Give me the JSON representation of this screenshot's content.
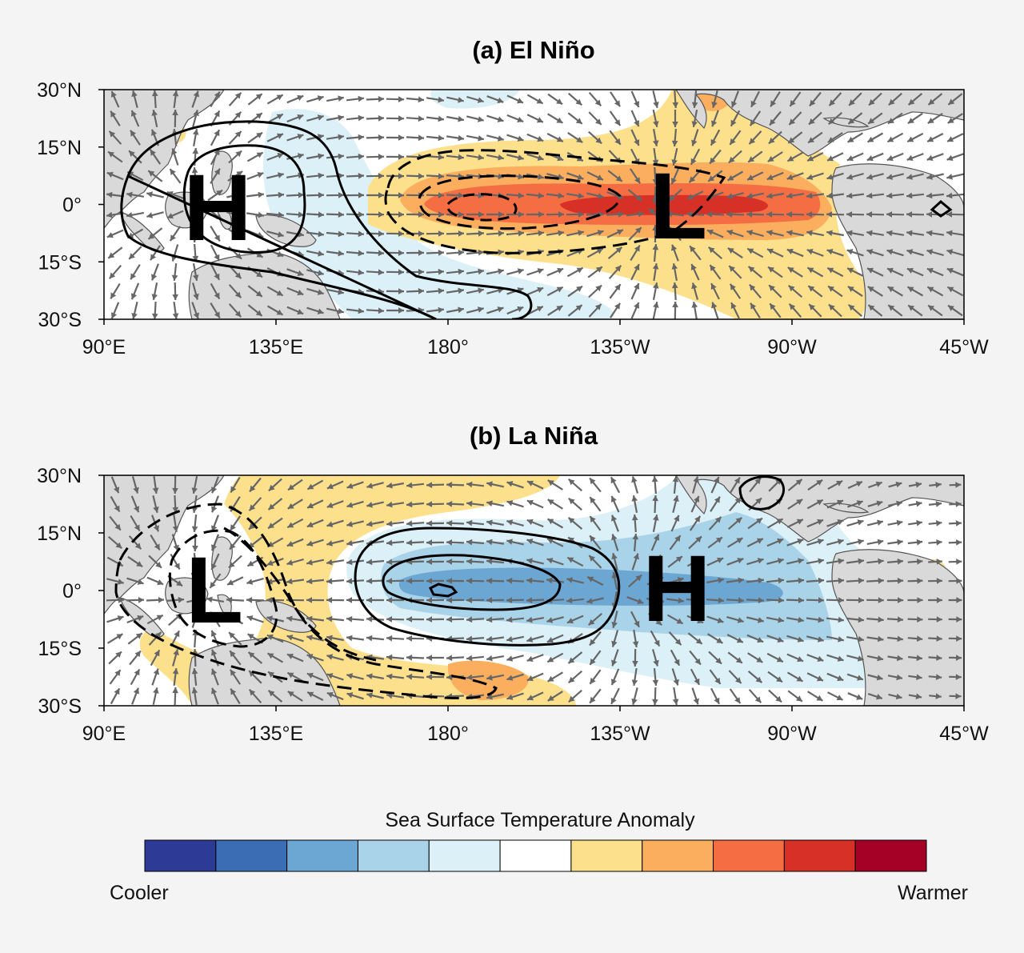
{
  "panels": [
    {
      "id": "el-nino",
      "title": "(a) El Niño",
      "high_label": "H",
      "low_label": "L",
      "high_center": [
        117,
        0
      ],
      "low_center": [
        233,
        -2
      ]
    },
    {
      "id": "la-nina",
      "title": "(b) La Niña",
      "high_label": "H",
      "low_label": "L",
      "high_center": [
        223,
        -1
      ],
      "low_center": [
        117,
        -2
      ]
    }
  ],
  "lon_ticks": [
    "90°E",
    "135°E",
    "180°",
    "135°W",
    "90°W",
    "45°W"
  ],
  "lat_ticks": [
    "30°N",
    "15°N",
    "0°",
    "15°S",
    "30°S"
  ],
  "colorbar": {
    "title": "Sea Surface Temperature Anomaly",
    "low_label": "Cooler",
    "high_label": "Warmer",
    "colors": [
      "#2d3a96",
      "#3b6db5",
      "#6ca7d3",
      "#a9d3e8",
      "#dcf0f8",
      "#ffffff",
      "#fde08c",
      "#fcae5f",
      "#f46d43",
      "#d73127",
      "#a50026"
    ]
  },
  "colors": {
    "land": "#d9d9d9",
    "ocean": "#ffffff",
    "arrow": "#666666",
    "contour": "#000000"
  }
}
